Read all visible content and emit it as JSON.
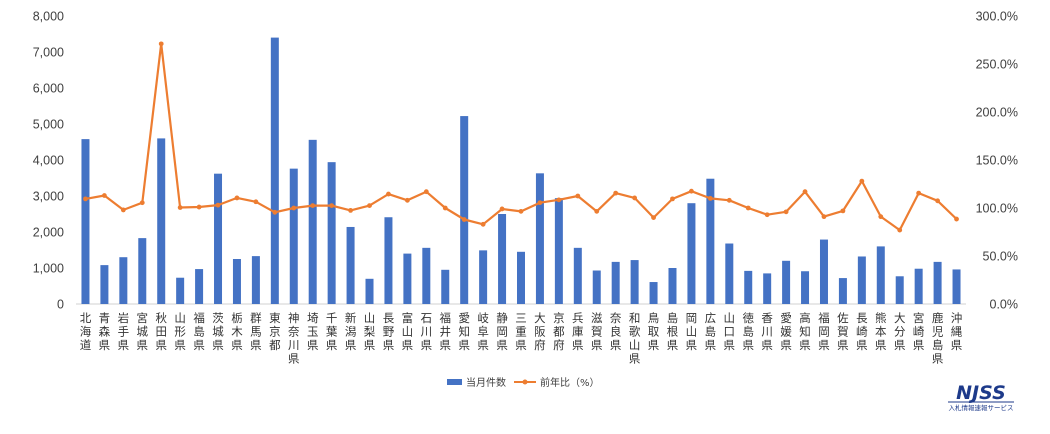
{
  "chart_data": {
    "type": "bar",
    "categories": [
      "北海道",
      "青森県",
      "岩手県",
      "宮城県",
      "秋田県",
      "山形県",
      "福島県",
      "茨城県",
      "栃木県",
      "群馬県",
      "東京都",
      "神奈川県",
      "埼玉県",
      "千葉県",
      "新潟県",
      "山梨県",
      "長野県",
      "富山県",
      "石川県",
      "福井県",
      "愛知県",
      "岐阜県",
      "静岡県",
      "三重県",
      "大阪府",
      "京都府",
      "兵庫県",
      "滋賀県",
      "奈良県",
      "和歌山県",
      "鳥取県",
      "島根県",
      "岡山県",
      "広島県",
      "山口県",
      "徳島県",
      "香川県",
      "愛媛県",
      "高知県",
      "福岡県",
      "佐賀県",
      "長崎県",
      "熊本県",
      "大分県",
      "宮崎県",
      "鹿児島県",
      "沖縄県"
    ],
    "series": [
      {
        "name": "当月件数",
        "type": "bar",
        "axis": "left",
        "color": "#4472C4",
        "values": [
          4580,
          1080,
          1300,
          1830,
          4600,
          730,
          970,
          3620,
          1250,
          1330,
          7400,
          3760,
          4560,
          3940,
          2140,
          700,
          2410,
          1400,
          1560,
          950,
          5220,
          1490,
          2500,
          1450,
          3630,
          2940,
          1560,
          930,
          1170,
          1220,
          610,
          1000,
          2800,
          3480,
          1680,
          920,
          850,
          1200,
          910,
          1790,
          720,
          1320,
          1600,
          770,
          980,
          1170,
          960
        ]
      },
      {
        "name": "前年比（%）",
        "type": "line",
        "axis": "right",
        "color": "#ED7D31",
        "values": [
          109.5,
          113.0,
          98.0,
          105.5,
          271.0,
          100.5,
          101.0,
          103.0,
          110.5,
          106.5,
          95.5,
          100.0,
          102.5,
          102.5,
          97.5,
          102.5,
          114.5,
          108.0,
          117.0,
          100.0,
          88.0,
          83.0,
          99.0,
          96.5,
          105.5,
          108.5,
          112.5,
          96.5,
          115.5,
          110.5,
          90.0,
          109.5,
          117.5,
          110.0,
          108.0,
          100.0,
          93.0,
          96.0,
          117.0,
          91.0,
          97.0,
          128.0,
          91.0,
          77.0,
          115.5,
          107.5,
          88.5
        ]
      }
    ],
    "y_left": {
      "min": 0,
      "max": 8000,
      "step": 1000,
      "tick_labels": [
        "0",
        "1,000",
        "2,000",
        "3,000",
        "4,000",
        "5,000",
        "6,000",
        "7,000",
        "8,000"
      ]
    },
    "y_right": {
      "min": 0,
      "max": 300,
      "step": 50,
      "tick_labels": [
        "0.0%",
        "50.0%",
        "100.0%",
        "150.0%",
        "200.0%",
        "250.0%",
        "300.0%"
      ]
    },
    "grid": false,
    "legend_position": "bottom-center",
    "title": "",
    "xlabel": "",
    "ylabel": ""
  },
  "logo": {
    "text": "NJSS",
    "subtitle": "入札情報速報サービス"
  }
}
